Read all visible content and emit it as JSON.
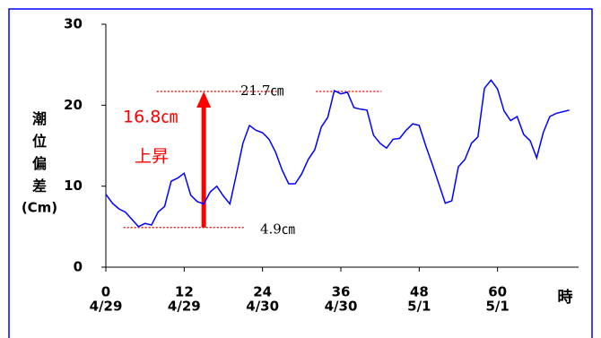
{
  "chart_data": {
    "type": "line",
    "ylabel": "潮位偏差",
    "ylabel_unit": "(Cm)",
    "xlabel": "時",
    "x": [
      0,
      1,
      2,
      3,
      4,
      5,
      6,
      7,
      8,
      9,
      10,
      11,
      12,
      13,
      14,
      15,
      16,
      17,
      18,
      19,
      20,
      21,
      22,
      23,
      24,
      25,
      26,
      27,
      28,
      29,
      30,
      31,
      32,
      33,
      34,
      35,
      36,
      37,
      38,
      39,
      40,
      41,
      42,
      43,
      44,
      45,
      46,
      47,
      48,
      49,
      50,
      51,
      52,
      53,
      54,
      55,
      56,
      57,
      58,
      59,
      60,
      61,
      62,
      63,
      64,
      65,
      66,
      67,
      68,
      69,
      70,
      71
    ],
    "series": [
      {
        "color": "#0000ff",
        "values": [
          9.0,
          7.9,
          7.2,
          6.8,
          5.9,
          5.0,
          5.4,
          5.2,
          6.8,
          7.5,
          10.6,
          11.0,
          11.6,
          8.9,
          8.1,
          7.8,
          9.3,
          10.0,
          8.8,
          7.8,
          11.5,
          15.3,
          17.5,
          16.9,
          16.6,
          15.8,
          14.2,
          12.0,
          10.3,
          10.3,
          11.5,
          13.3,
          14.5,
          17.3,
          18.5,
          21.8,
          21.4,
          21.6,
          19.7,
          19.5,
          19.4,
          16.3,
          15.3,
          14.7,
          15.8,
          15.9,
          16.9,
          17.7,
          17.5,
          15.0,
          12.7,
          10.3,
          7.9,
          8.2,
          12.4,
          13.3,
          15.3,
          16.1,
          22.1,
          23.1,
          22.0,
          19.3,
          18.1,
          18.6,
          16.4,
          15.6,
          13.5,
          16.6,
          18.6,
          19.0,
          19.2,
          19.4
        ]
      }
    ],
    "xlim": [
      0,
      72
    ],
    "ylim": [
      0,
      30
    ],
    "xticks": [
      0,
      12,
      24,
      36,
      48,
      60
    ],
    "xtick_dates": [
      "4/29",
      "4/29",
      "4/30",
      "4/30",
      "5/1",
      "5/1"
    ],
    "yticks": [
      0,
      10,
      20,
      30
    ],
    "annotations": {
      "low": {
        "value": 4.9,
        "label": "4.9㎝"
      },
      "high": {
        "value": 21.7,
        "label": "21.7㎝"
      },
      "rise": {
        "value": 16.8,
        "label": "16.8㎝",
        "text": "上昇"
      }
    }
  }
}
